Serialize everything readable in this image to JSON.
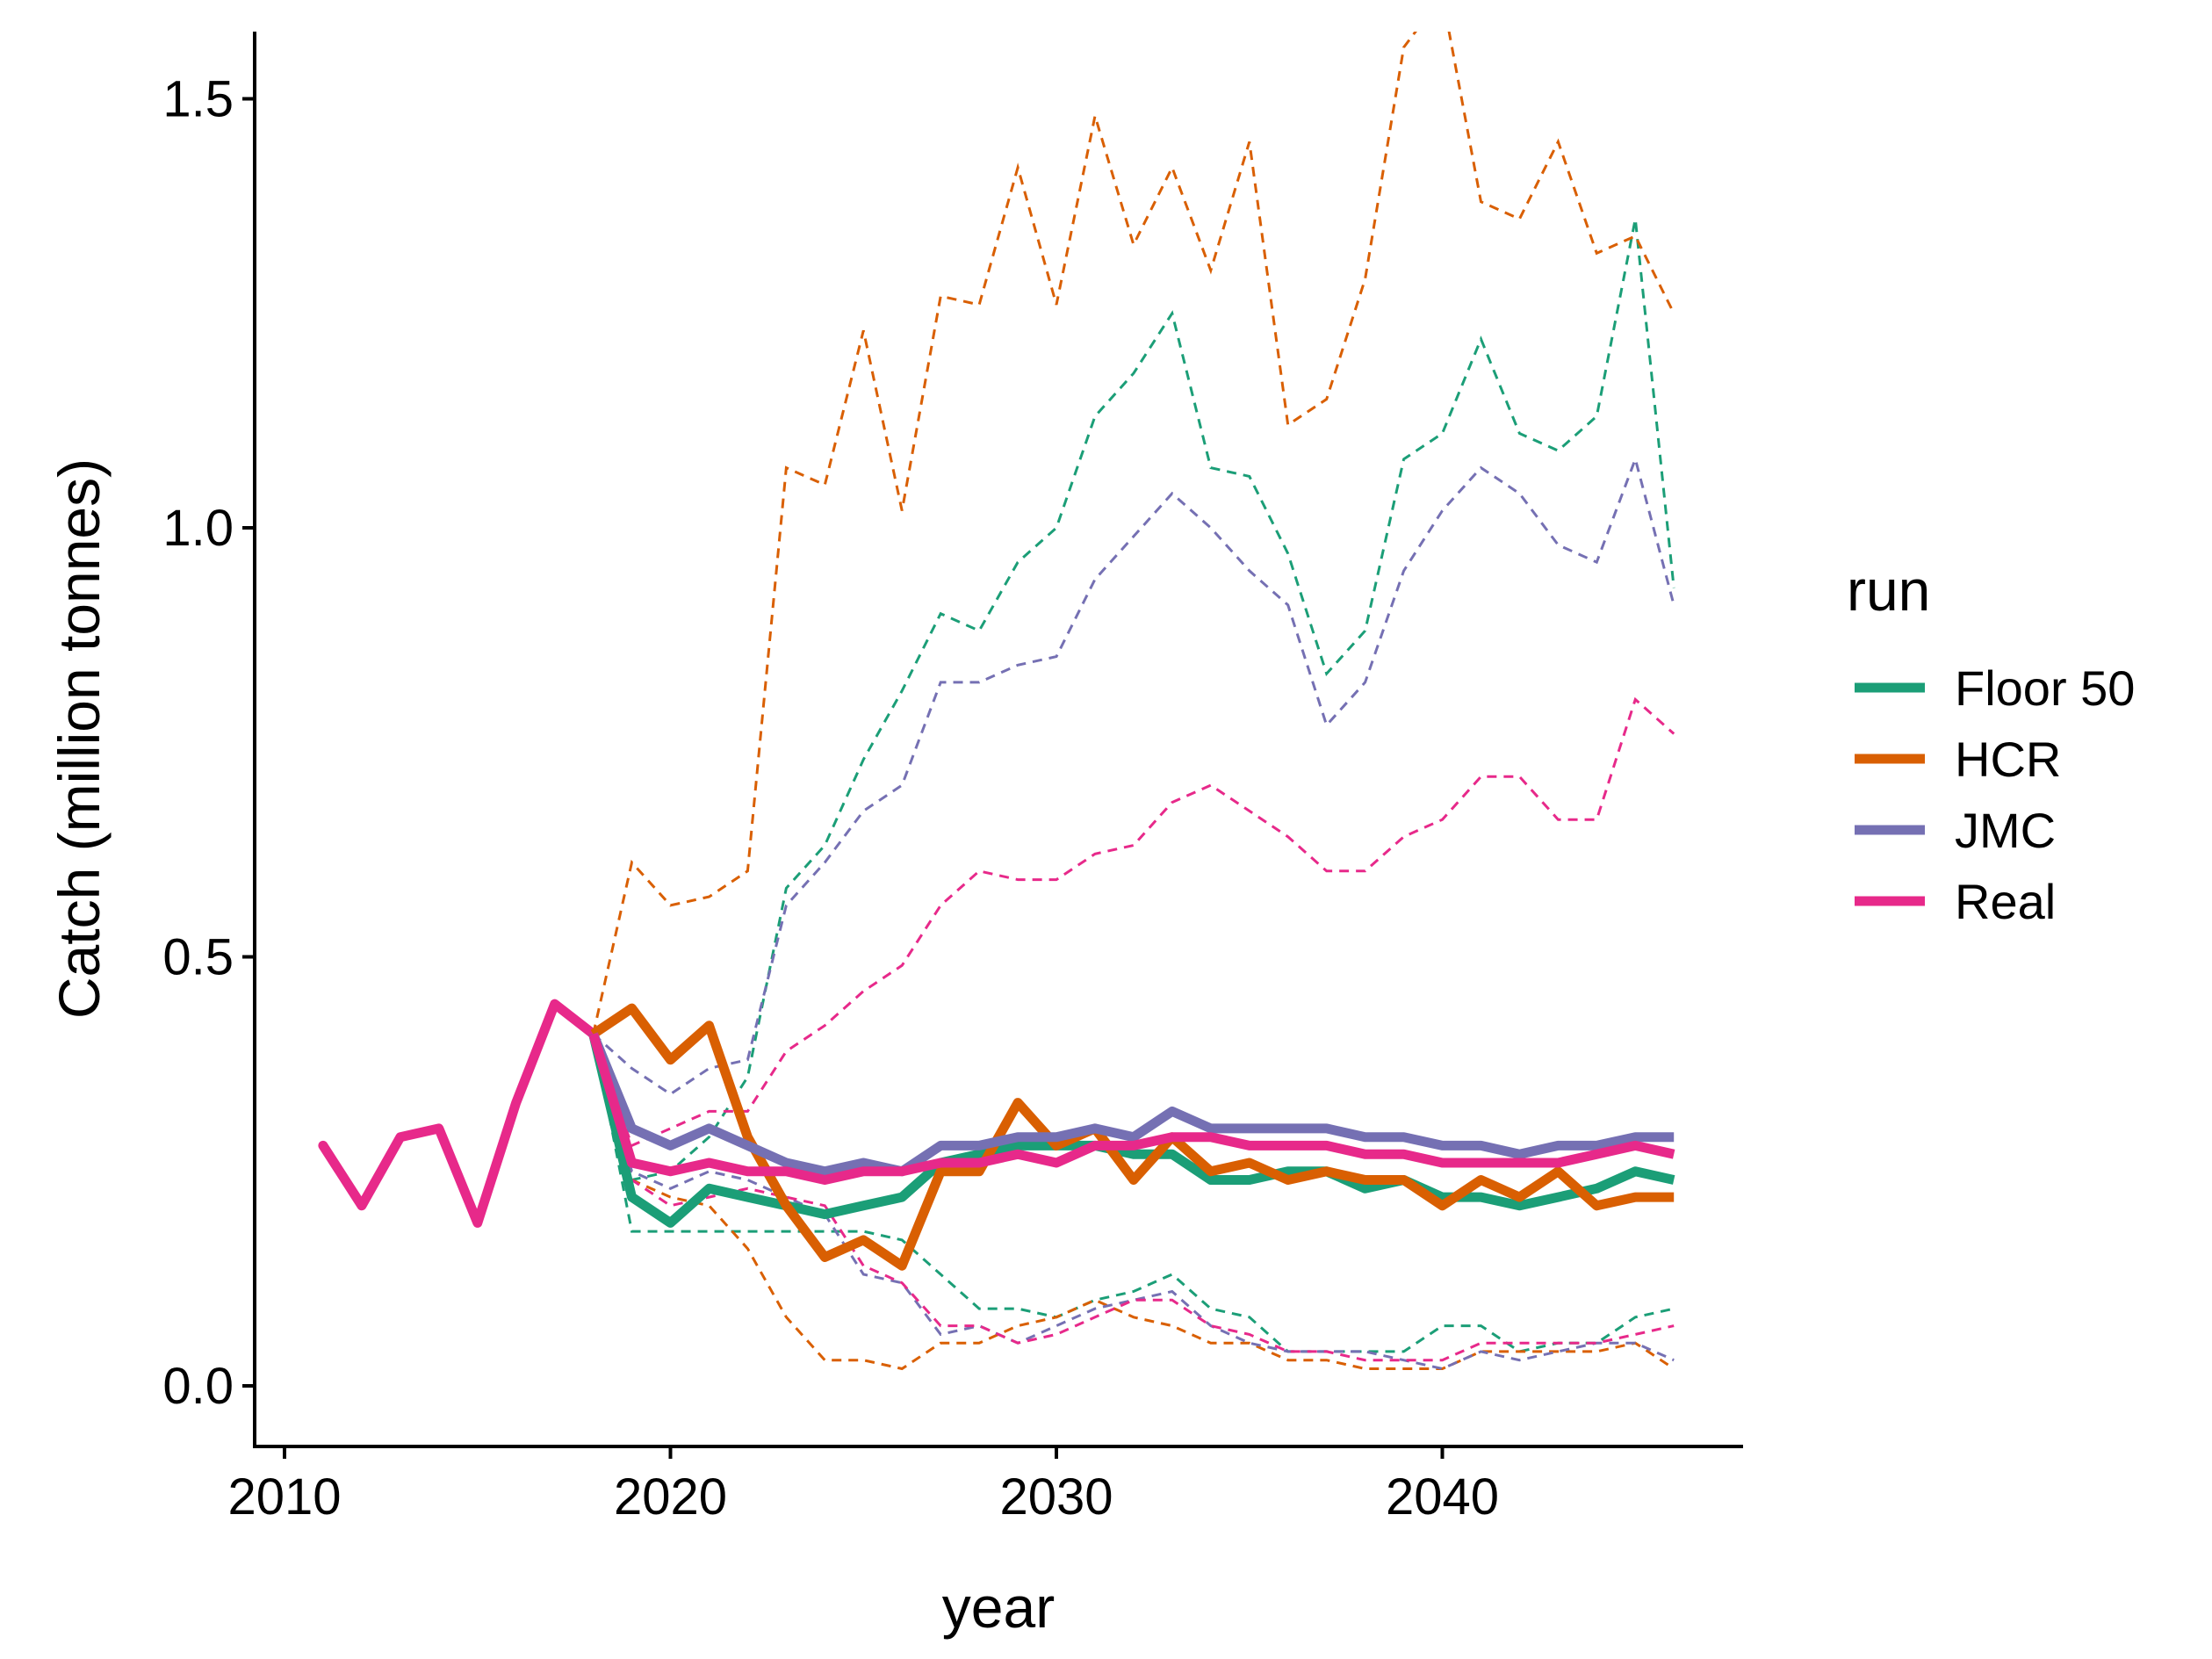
{
  "chart_data": {
    "type": "line",
    "xlabel": "year",
    "ylabel": "Catch (million tonnes)",
    "xlim": [
      2009,
      2048
    ],
    "ylim": [
      -0.07,
      1.58
    ],
    "x_ticks": [
      "2010",
      "2020",
      "2030",
      "2040"
    ],
    "y_ticks": [
      "0.0",
      "0.5",
      "1.0",
      "1.5"
    ],
    "grid": false,
    "legend": {
      "title": "run",
      "placement": "right",
      "entries": [
        "Floor 50",
        "HCR",
        "JMC",
        "Real"
      ]
    },
    "colors": {
      "Floor 50": "#1b9e77",
      "HCR": "#d95f02",
      "JMC": "#7570b3",
      "Real": "#e7298a"
    },
    "history": {
      "name": "Real",
      "x": [
        2011,
        2012,
        2013,
        2014,
        2015,
        2016,
        2017,
        2018
      ],
      "y": [
        0.28,
        0.21,
        0.29,
        0.3,
        0.19,
        0.33,
        0.445,
        0.41
      ]
    },
    "series": [
      {
        "name": "Floor 50",
        "x": [
          2018,
          2019,
          2020,
          2021,
          2022,
          2023,
          2024,
          2025,
          2026,
          2027,
          2028,
          2029,
          2030,
          2031,
          2032,
          2033,
          2034,
          2035,
          2036,
          2037,
          2038,
          2039,
          2040,
          2041,
          2042,
          2043,
          2044,
          2045,
          2046
        ],
        "median": [
          0.41,
          0.22,
          0.19,
          0.23,
          0.22,
          0.21,
          0.2,
          0.21,
          0.22,
          0.26,
          0.27,
          0.28,
          0.28,
          0.28,
          0.27,
          0.27,
          0.24,
          0.24,
          0.25,
          0.25,
          0.23,
          0.24,
          0.22,
          0.22,
          0.21,
          0.22,
          0.23,
          0.25,
          0.24
        ],
        "upper": [
          0.41,
          0.24,
          0.25,
          0.29,
          0.36,
          0.58,
          0.63,
          0.73,
          0.81,
          0.9,
          0.88,
          0.96,
          1.0,
          1.13,
          1.18,
          1.25,
          1.07,
          1.06,
          0.97,
          0.83,
          0.88,
          1.08,
          1.11,
          1.22,
          1.11,
          1.09,
          1.13,
          1.36,
          0.93
        ],
        "lower": [
          0.41,
          0.18,
          0.18,
          0.18,
          0.18,
          0.18,
          0.18,
          0.18,
          0.17,
          0.13,
          0.09,
          0.09,
          0.08,
          0.1,
          0.11,
          0.13,
          0.09,
          0.08,
          0.04,
          0.04,
          0.04,
          0.04,
          0.07,
          0.07,
          0.04,
          0.05,
          0.05,
          0.08,
          0.09
        ]
      },
      {
        "name": "HCR",
        "x": [
          2018,
          2019,
          2020,
          2021,
          2022,
          2023,
          2024,
          2025,
          2026,
          2027,
          2028,
          2029,
          2030,
          2031,
          2032,
          2033,
          2034,
          2035,
          2036,
          2037,
          2038,
          2039,
          2040,
          2041,
          2042,
          2043,
          2044,
          2045,
          2046
        ],
        "median": [
          0.41,
          0.44,
          0.38,
          0.42,
          0.29,
          0.21,
          0.15,
          0.17,
          0.14,
          0.25,
          0.25,
          0.33,
          0.28,
          0.3,
          0.24,
          0.29,
          0.25,
          0.26,
          0.24,
          0.25,
          0.24,
          0.24,
          0.21,
          0.24,
          0.22,
          0.25,
          0.21,
          0.22,
          0.22
        ],
        "upper": [
          0.41,
          0.61,
          0.56,
          0.57,
          0.6,
          1.07,
          1.05,
          1.23,
          1.02,
          1.27,
          1.26,
          1.42,
          1.26,
          1.48,
          1.33,
          1.42,
          1.3,
          1.45,
          1.12,
          1.15,
          1.29,
          1.56,
          1.62,
          1.38,
          1.36,
          1.45,
          1.32,
          1.34,
          1.25
        ],
        "lower": [
          0.41,
          0.24,
          0.22,
          0.21,
          0.16,
          0.08,
          0.03,
          0.03,
          0.02,
          0.05,
          0.05,
          0.07,
          0.08,
          0.1,
          0.08,
          0.07,
          0.05,
          0.05,
          0.03,
          0.03,
          0.02,
          0.02,
          0.02,
          0.04,
          0.04,
          0.04,
          0.04,
          0.05,
          0.02
        ]
      },
      {
        "name": "JMC",
        "x": [
          2018,
          2019,
          2020,
          2021,
          2022,
          2023,
          2024,
          2025,
          2026,
          2027,
          2028,
          2029,
          2030,
          2031,
          2032,
          2033,
          2034,
          2035,
          2036,
          2037,
          2038,
          2039,
          2040,
          2041,
          2042,
          2043,
          2044,
          2045,
          2046
        ],
        "median": [
          0.41,
          0.3,
          0.28,
          0.3,
          0.28,
          0.26,
          0.25,
          0.26,
          0.25,
          0.28,
          0.28,
          0.29,
          0.29,
          0.3,
          0.29,
          0.32,
          0.3,
          0.3,
          0.3,
          0.3,
          0.29,
          0.29,
          0.28,
          0.28,
          0.27,
          0.28,
          0.28,
          0.29,
          0.29
        ],
        "upper": [
          0.41,
          0.37,
          0.34,
          0.37,
          0.38,
          0.56,
          0.61,
          0.67,
          0.7,
          0.82,
          0.82,
          0.84,
          0.85,
          0.94,
          0.99,
          1.04,
          1.0,
          0.95,
          0.91,
          0.77,
          0.82,
          0.95,
          1.02,
          1.07,
          1.04,
          0.98,
          0.96,
          1.08,
          0.91
        ],
        "lower": [
          0.41,
          0.25,
          0.23,
          0.25,
          0.24,
          0.22,
          0.2,
          0.13,
          0.12,
          0.06,
          0.07,
          0.05,
          0.07,
          0.09,
          0.1,
          0.11,
          0.07,
          0.05,
          0.04,
          0.04,
          0.04,
          0.03,
          0.02,
          0.04,
          0.03,
          0.04,
          0.05,
          0.05,
          0.03
        ]
      },
      {
        "name": "Real",
        "x": [
          2018,
          2019,
          2020,
          2021,
          2022,
          2023,
          2024,
          2025,
          2026,
          2027,
          2028,
          2029,
          2030,
          2031,
          2032,
          2033,
          2034,
          2035,
          2036,
          2037,
          2038,
          2039,
          2040,
          2041,
          2042,
          2043,
          2044,
          2045,
          2046
        ],
        "median": [
          0.41,
          0.26,
          0.25,
          0.26,
          0.25,
          0.25,
          0.24,
          0.25,
          0.25,
          0.26,
          0.26,
          0.27,
          0.26,
          0.28,
          0.28,
          0.29,
          0.29,
          0.28,
          0.28,
          0.28,
          0.27,
          0.27,
          0.26,
          0.26,
          0.26,
          0.26,
          0.27,
          0.28,
          0.27
        ],
        "upper": [
          0.41,
          0.28,
          0.3,
          0.32,
          0.32,
          0.39,
          0.42,
          0.46,
          0.49,
          0.56,
          0.6,
          0.59,
          0.59,
          0.62,
          0.63,
          0.68,
          0.7,
          0.67,
          0.64,
          0.6,
          0.6,
          0.64,
          0.66,
          0.71,
          0.71,
          0.66,
          0.66,
          0.8,
          0.76
        ],
        "lower": [
          0.41,
          0.24,
          0.21,
          0.22,
          0.23,
          0.22,
          0.21,
          0.14,
          0.12,
          0.07,
          0.07,
          0.05,
          0.06,
          0.08,
          0.1,
          0.1,
          0.07,
          0.06,
          0.04,
          0.04,
          0.03,
          0.03,
          0.03,
          0.05,
          0.05,
          0.05,
          0.05,
          0.06,
          0.07
        ]
      }
    ]
  }
}
